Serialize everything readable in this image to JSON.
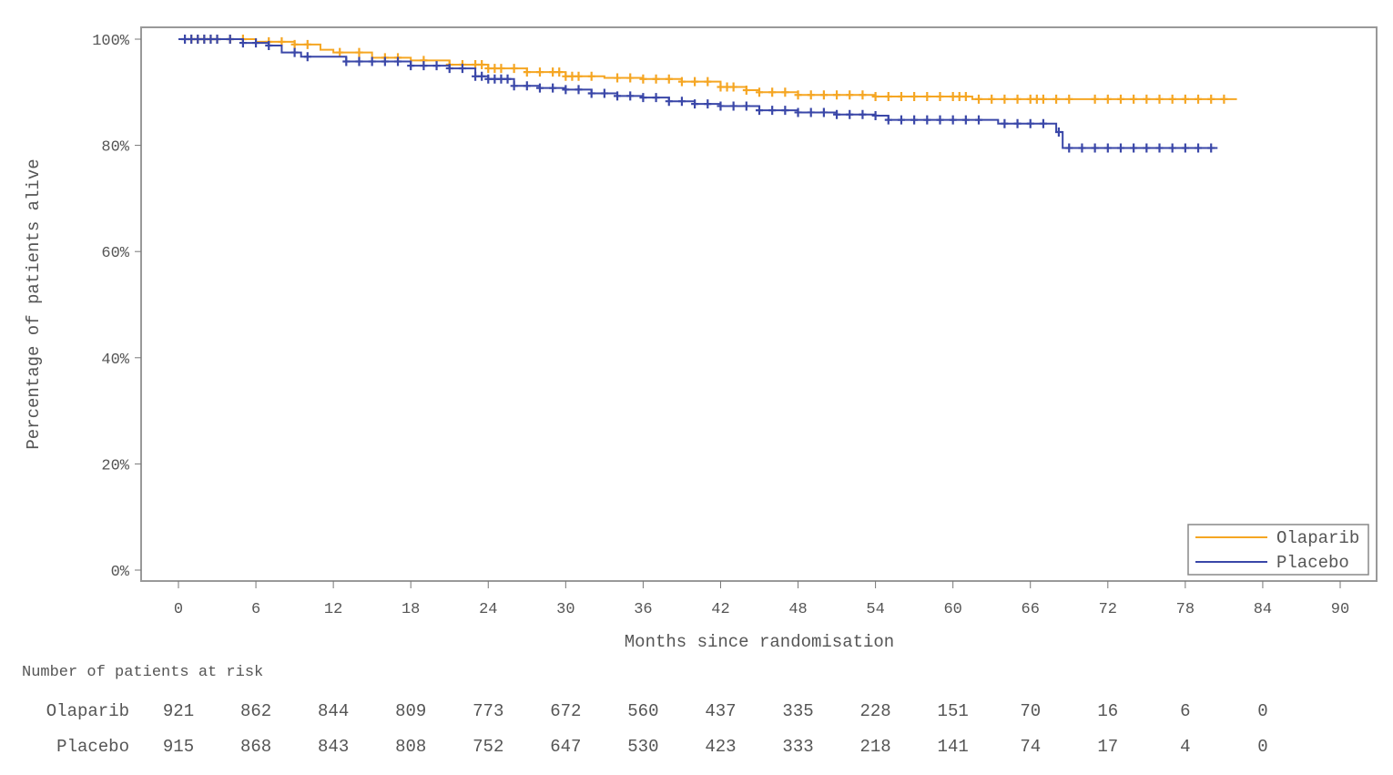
{
  "chart_data": {
    "type": "line",
    "subtype": "kaplan-meier",
    "xlabel": "Months since randomisation",
    "ylabel": "Percentage of patients alive",
    "xlim": [
      0,
      90
    ],
    "ylim": [
      0,
      100
    ],
    "x_ticks": [
      0,
      6,
      12,
      18,
      24,
      30,
      36,
      42,
      48,
      54,
      60,
      66,
      72,
      78,
      84,
      90
    ],
    "y_ticks": [
      "0%",
      "20%",
      "40%",
      "60%",
      "80%",
      "100%"
    ],
    "y_tick_values": [
      0,
      20,
      40,
      60,
      80,
      100
    ],
    "grid": false,
    "legend_position": "bottom-right",
    "series": [
      {
        "name": "Olaparib",
        "color": "#f5a623",
        "points": [
          [
            0,
            100
          ],
          [
            4,
            100
          ],
          [
            6,
            99.5
          ],
          [
            9,
            99
          ],
          [
            11,
            98
          ],
          [
            12,
            97.5
          ],
          [
            15,
            96.5
          ],
          [
            18,
            96
          ],
          [
            21,
            95.2
          ],
          [
            24,
            94.5
          ],
          [
            27,
            93.8
          ],
          [
            30,
            93
          ],
          [
            33,
            92.7
          ],
          [
            36,
            92.5
          ],
          [
            39,
            92
          ],
          [
            42,
            91
          ],
          [
            44,
            90.4
          ],
          [
            45,
            90
          ],
          [
            48,
            89.5
          ],
          [
            54,
            89.2
          ],
          [
            60,
            89.2
          ],
          [
            61.5,
            88.7
          ],
          [
            82,
            88.7
          ]
        ],
        "censor_months": [
          1,
          1.5,
          2,
          2.5,
          3,
          4,
          5,
          7,
          8,
          9,
          10,
          12.5,
          14,
          16,
          17,
          19,
          21,
          22,
          23,
          23.5,
          24,
          24.5,
          25,
          26,
          27,
          28,
          29,
          29.5,
          30,
          30.5,
          31,
          32,
          34,
          35,
          36,
          37,
          38,
          39,
          40,
          41,
          42,
          42.5,
          43,
          44,
          45,
          46,
          47,
          48,
          49,
          50,
          51,
          52,
          53,
          54,
          55,
          56,
          57,
          58,
          59,
          60,
          60.5,
          61,
          62,
          63,
          64,
          65,
          66,
          66.5,
          67,
          68,
          69,
          71,
          72,
          73,
          74,
          75,
          76,
          77,
          78,
          79,
          80,
          81
        ]
      },
      {
        "name": "Placebo",
        "color": "#3a47a8",
        "points": [
          [
            0,
            100
          ],
          [
            5,
            99.3
          ],
          [
            7,
            98.8
          ],
          [
            8,
            97.5
          ],
          [
            9.5,
            96.7
          ],
          [
            12,
            96.7
          ],
          [
            13,
            95.8
          ],
          [
            18,
            95
          ],
          [
            21,
            94.5
          ],
          [
            23,
            93
          ],
          [
            24,
            92.5
          ],
          [
            26,
            91.2
          ],
          [
            28,
            90.8
          ],
          [
            30,
            90.5
          ],
          [
            32,
            89.8
          ],
          [
            34,
            89.3
          ],
          [
            36,
            89
          ],
          [
            38,
            88.3
          ],
          [
            40,
            87.8
          ],
          [
            42,
            87.4
          ],
          [
            45,
            86.6
          ],
          [
            48,
            86.2
          ],
          [
            51,
            85.8
          ],
          [
            54,
            85.6
          ],
          [
            55,
            84.8
          ],
          [
            62.5,
            84.8
          ],
          [
            63.5,
            84.1
          ],
          [
            67.5,
            84.1
          ],
          [
            68,
            82.5
          ],
          [
            68.5,
            79.5
          ],
          [
            80.5,
            79.5
          ]
        ],
        "censor_months": [
          0.5,
          1,
          1.5,
          2,
          2.5,
          3,
          4,
          5,
          6,
          7,
          9,
          10,
          13,
          14,
          15,
          16,
          17,
          18,
          19,
          20,
          21,
          22,
          23,
          23.5,
          24,
          24.5,
          25,
          25.5,
          26,
          27,
          28,
          29,
          30,
          31,
          32,
          33,
          34,
          35,
          36,
          37,
          38,
          39,
          40,
          41,
          42,
          43,
          44,
          45,
          46,
          47,
          48,
          49,
          50,
          51,
          52,
          53,
          54,
          55,
          56,
          57,
          58,
          59,
          60,
          61,
          62,
          64,
          65,
          66,
          67,
          68.2,
          69,
          70,
          71,
          72,
          73,
          74,
          75,
          76,
          77,
          78,
          79,
          80
        ]
      }
    ],
    "risk_table": {
      "title": "Number of patients at risk",
      "months": [
        0,
        6,
        12,
        18,
        24,
        30,
        36,
        42,
        48,
        54,
        60,
        66,
        72,
        78,
        84
      ],
      "rows": [
        {
          "label": "Olaparib",
          "values": [
            "921",
            "862",
            "844",
            "809",
            "773",
            "672",
            "560",
            "437",
            "335",
            "228",
            "151",
            "70",
            "16",
            "6",
            "0"
          ]
        },
        {
          "label": "Placebo",
          "values": [
            "915",
            "868",
            "843",
            "808",
            "752",
            "647",
            "530",
            "423",
            "333",
            "218",
            "141",
            "74",
            "17",
            "4",
            "0"
          ]
        }
      ]
    }
  }
}
